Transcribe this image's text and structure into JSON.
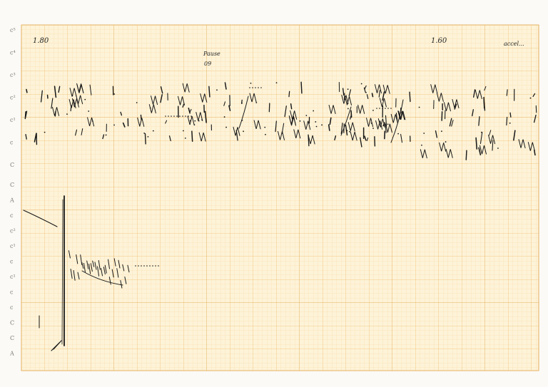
{
  "score": {
    "tempo_marks": [
      "1.80",
      "1.60"
    ],
    "annotations": {
      "pause": "Pause",
      "pause_value": "09",
      "accel": "accel..."
    },
    "upper_staff_labels": [
      "c⁵",
      "c⁴",
      "c³",
      "c²",
      "c¹",
      "c",
      "C"
    ],
    "lower_staff_labels": [
      "C",
      "A",
      "c",
      "c²",
      "c¹",
      "c",
      "c¹",
      "c",
      "c",
      "C",
      "C",
      "A"
    ]
  }
}
